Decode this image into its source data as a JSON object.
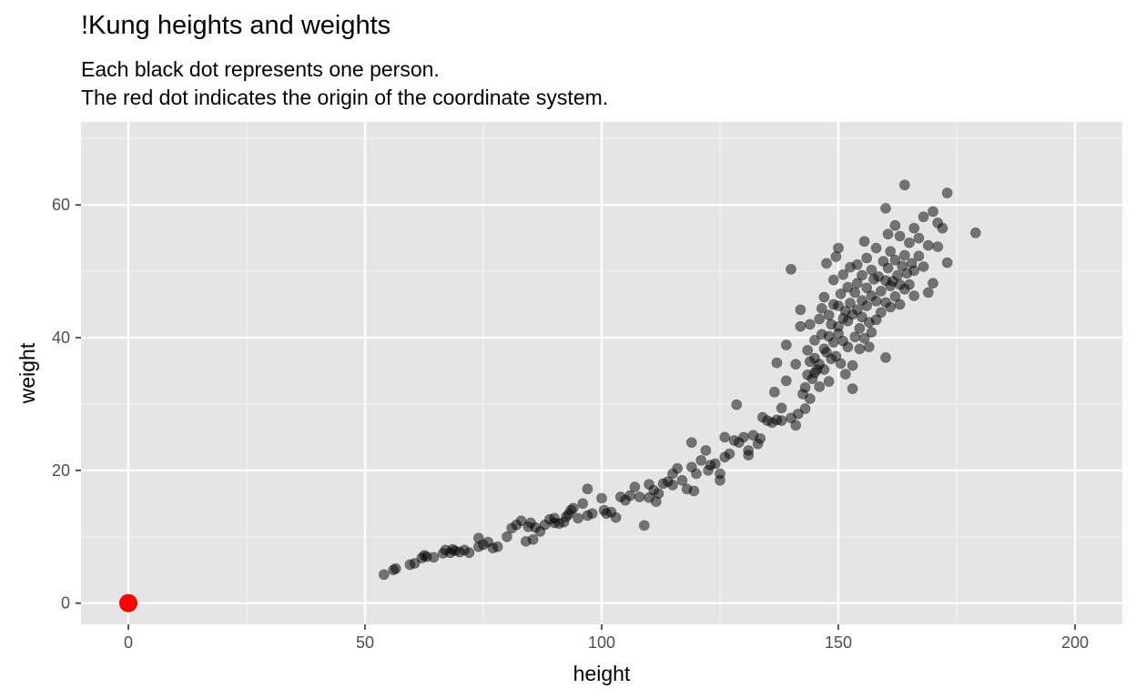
{
  "chart_data": {
    "type": "scatter",
    "title": "!Kung heights and weights",
    "subtitle": [
      "Each black dot represents one person.",
      "The red dot indicates the origin of the coordinate system."
    ],
    "xlabel": "height",
    "ylabel": "weight",
    "xlim": [
      -10,
      210
    ],
    "ylim": [
      -3.2,
      72.5
    ],
    "x_ticks": [
      0,
      50,
      100,
      150,
      200
    ],
    "x_tick_labels": [
      "0",
      "50",
      "100",
      "150",
      "200"
    ],
    "y_ticks": [
      0,
      20,
      40,
      60
    ],
    "y_tick_labels": [
      "0",
      "20",
      "40",
      "60"
    ],
    "grid": true,
    "background": "#e5e5e5",
    "point_color": "#000000",
    "point_opacity": 0.5,
    "origin_marker": {
      "x": 0,
      "y": 0,
      "color": "#ff0000"
    },
    "series": [
      {
        "points": [
          [
            54,
            4.3
          ],
          [
            56,
            5.0
          ],
          [
            56.5,
            5.2
          ],
          [
            59.5,
            5.8
          ],
          [
            60.5,
            6.0
          ],
          [
            62,
            6.8
          ],
          [
            62.5,
            7.2
          ],
          [
            63,
            7.0
          ],
          [
            64.5,
            6.9
          ],
          [
            66.5,
            7.5
          ],
          [
            67,
            8.0
          ],
          [
            68,
            7.6
          ],
          [
            68.5,
            8.1
          ],
          [
            69,
            7.9
          ],
          [
            70,
            7.7
          ],
          [
            71,
            8.0
          ],
          [
            72,
            7.6
          ],
          [
            74,
            8.5
          ],
          [
            74,
            9.8
          ],
          [
            75,
            8.8
          ],
          [
            76,
            9.2
          ],
          [
            77,
            8.3
          ],
          [
            78,
            8.5
          ],
          [
            80,
            10
          ],
          [
            81,
            11.3
          ],
          [
            82,
            11.8
          ],
          [
            83,
            12.4
          ],
          [
            84,
            9.3
          ],
          [
            84.5,
            11.5
          ],
          [
            85,
            12.1
          ],
          [
            85.5,
            9.6
          ],
          [
            86,
            11.4
          ],
          [
            87,
            10.8
          ],
          [
            88,
            11.8
          ],
          [
            89,
            12.6
          ],
          [
            90,
            12.8
          ],
          [
            90,
            12.1
          ],
          [
            91,
            12.0
          ],
          [
            92,
            12.2
          ],
          [
            92.5,
            13.0
          ],
          [
            93,
            13.4
          ],
          [
            93.5,
            14.0
          ],
          [
            94,
            14.3
          ],
          [
            95,
            12.8
          ],
          [
            96,
            15.0
          ],
          [
            97,
            13.2
          ],
          [
            97,
            17.2
          ],
          [
            98,
            13.5
          ],
          [
            100,
            15.8
          ],
          [
            100.5,
            14.0
          ],
          [
            101,
            13.5
          ],
          [
            102,
            13.7
          ],
          [
            103,
            12.9
          ],
          [
            104,
            16.0
          ],
          [
            105,
            15.5
          ],
          [
            106,
            16.2
          ],
          [
            107,
            17.5
          ],
          [
            108,
            16.0
          ],
          [
            109,
            11.7
          ],
          [
            110,
            17.9
          ],
          [
            110,
            15.9
          ],
          [
            111,
            17.0
          ],
          [
            111.5,
            15.3
          ],
          [
            112,
            16.5
          ],
          [
            113,
            18.0
          ],
          [
            114,
            18.3
          ],
          [
            115,
            17.8
          ],
          [
            115,
            19.5
          ],
          [
            116,
            20.3
          ],
          [
            117,
            18.5
          ],
          [
            118,
            17.2
          ],
          [
            119,
            24.2
          ],
          [
            119,
            20.5
          ],
          [
            119.5,
            16.9
          ],
          [
            120,
            19.5
          ],
          [
            121,
            21.5
          ],
          [
            122,
            23.0
          ],
          [
            122.5,
            20.0
          ],
          [
            123,
            20.8
          ],
          [
            124,
            21.0
          ],
          [
            125,
            18.5
          ],
          [
            125,
            19.5
          ],
          [
            126,
            25.0
          ],
          [
            126,
            22.0
          ],
          [
            127,
            22.5
          ],
          [
            128,
            24.5
          ],
          [
            128.5,
            29.9
          ],
          [
            129,
            24.2
          ],
          [
            130,
            25.0
          ],
          [
            131,
            22.3
          ],
          [
            131,
            23.0
          ],
          [
            132,
            25.3
          ],
          [
            133,
            24.0
          ],
          [
            133.5,
            24.8
          ],
          [
            134,
            28.0
          ],
          [
            135,
            27.5
          ],
          [
            136,
            27.2
          ],
          [
            136.5,
            31.8
          ],
          [
            137,
            36.2
          ],
          [
            137,
            27.6
          ],
          [
            138,
            29.4
          ],
          [
            138,
            27.5
          ],
          [
            139,
            33.5
          ],
          [
            139,
            38.9
          ],
          [
            140,
            27.9
          ],
          [
            140,
            50.3
          ],
          [
            141,
            26.8
          ],
          [
            141,
            36.0
          ],
          [
            141.5,
            28.5
          ],
          [
            142,
            44.2
          ],
          [
            142,
            41.7
          ],
          [
            142.5,
            31.5
          ],
          [
            143,
            29.3
          ],
          [
            143,
            32.5
          ],
          [
            143.5,
            34.4
          ],
          [
            143.5,
            38.1
          ],
          [
            144,
            36.4
          ],
          [
            144,
            42.0
          ],
          [
            144,
            30.8
          ],
          [
            144.5,
            33.8
          ],
          [
            145,
            34.7
          ],
          [
            145,
            36.9
          ],
          [
            145,
            39.6
          ],
          [
            145.5,
            35.2
          ],
          [
            146,
            42.8
          ],
          [
            146,
            36.0
          ],
          [
            146,
            32.6
          ],
          [
            146.5,
            40.5
          ],
          [
            146.5,
            44.4
          ],
          [
            147,
            38.3
          ],
          [
            147,
            46.1
          ],
          [
            147,
            35.2
          ],
          [
            147.5,
            37.8
          ],
          [
            147.5,
            51.2
          ],
          [
            148,
            40.2
          ],
          [
            148,
            43.4
          ],
          [
            148,
            33.4
          ],
          [
            148.5,
            36.8
          ],
          [
            148.5,
            42.0
          ],
          [
            149,
            45.0
          ],
          [
            149,
            39.3
          ],
          [
            149,
            48.7
          ],
          [
            149.5,
            37.2
          ],
          [
            149.5,
            52.2
          ],
          [
            150,
            44.8
          ],
          [
            150,
            40.6
          ],
          [
            150,
            41.7
          ],
          [
            150,
            53.5
          ],
          [
            150.5,
            36.1
          ],
          [
            150.5,
            46.6
          ],
          [
            151,
            42.9
          ],
          [
            151,
            39.5
          ],
          [
            151,
            49.5
          ],
          [
            151.5,
            44.0
          ],
          [
            151.5,
            34.5
          ],
          [
            152,
            47.6
          ],
          [
            152,
            42.5
          ],
          [
            152,
            38.6
          ],
          [
            152.5,
            50.6
          ],
          [
            152.5,
            45.2
          ],
          [
            153,
            43.5
          ],
          [
            153,
            35.8
          ],
          [
            153,
            32.3
          ],
          [
            153.5,
            46.8
          ],
          [
            153.5,
            40.1
          ],
          [
            154,
            48.2
          ],
          [
            154,
            44.2
          ],
          [
            154,
            51.0
          ],
          [
            154.5,
            41.4
          ],
          [
            154.5,
            38.3
          ],
          [
            155,
            45.6
          ],
          [
            155,
            49.4
          ],
          [
            155,
            43.1
          ],
          [
            155.5,
            54.5
          ],
          [
            155.5,
            39.9
          ],
          [
            156,
            47.5
          ],
          [
            156,
            44.8
          ],
          [
            156,
            52.0
          ],
          [
            156.5,
            42.3
          ],
          [
            156.5,
            38.6
          ],
          [
            157,
            50.2
          ],
          [
            157,
            46.3
          ],
          [
            157,
            40.8
          ],
          [
            157.5,
            48.8
          ],
          [
            158,
            45.5
          ],
          [
            158,
            53.5
          ],
          [
            158,
            42.7
          ],
          [
            158.5,
            49.2
          ],
          [
            159,
            47.0
          ],
          [
            159,
            43.8
          ],
          [
            159.5,
            51.5
          ],
          [
            160,
            48.6
          ],
          [
            160,
            45.3
          ],
          [
            160,
            59.5
          ],
          [
            160,
            37.0
          ],
          [
            160.5,
            55.6
          ],
          [
            160.5,
            50.5
          ],
          [
            161,
            47.8
          ],
          [
            161,
            44.6
          ],
          [
            161,
            53.0
          ],
          [
            161.5,
            48.5
          ],
          [
            162,
            51.7
          ],
          [
            162,
            46.2
          ],
          [
            162,
            56.9
          ],
          [
            162.5,
            49.4
          ],
          [
            163,
            48.0
          ],
          [
            163,
            55.3
          ],
          [
            163,
            45.0
          ],
          [
            163.5,
            50.8
          ],
          [
            164,
            63.0
          ],
          [
            164,
            52.4
          ],
          [
            164,
            47.3
          ],
          [
            164.5,
            49.7
          ],
          [
            165,
            54.3
          ],
          [
            165,
            48.0
          ],
          [
            165.5,
            51.2
          ],
          [
            166,
            56.5
          ],
          [
            166,
            50.1
          ],
          [
            166,
            46.3
          ],
          [
            167,
            55.0
          ],
          [
            167,
            52.3
          ],
          [
            168,
            58.2
          ],
          [
            168,
            50.7
          ],
          [
            169,
            53.9
          ],
          [
            169,
            46.8
          ],
          [
            170,
            59.0
          ],
          [
            170,
            48.2
          ],
          [
            171,
            57.3
          ],
          [
            171,
            53.7
          ],
          [
            172,
            56.5
          ],
          [
            173,
            61.8
          ],
          [
            173,
            51.3
          ],
          [
            179,
            55.8
          ]
        ]
      }
    ]
  }
}
